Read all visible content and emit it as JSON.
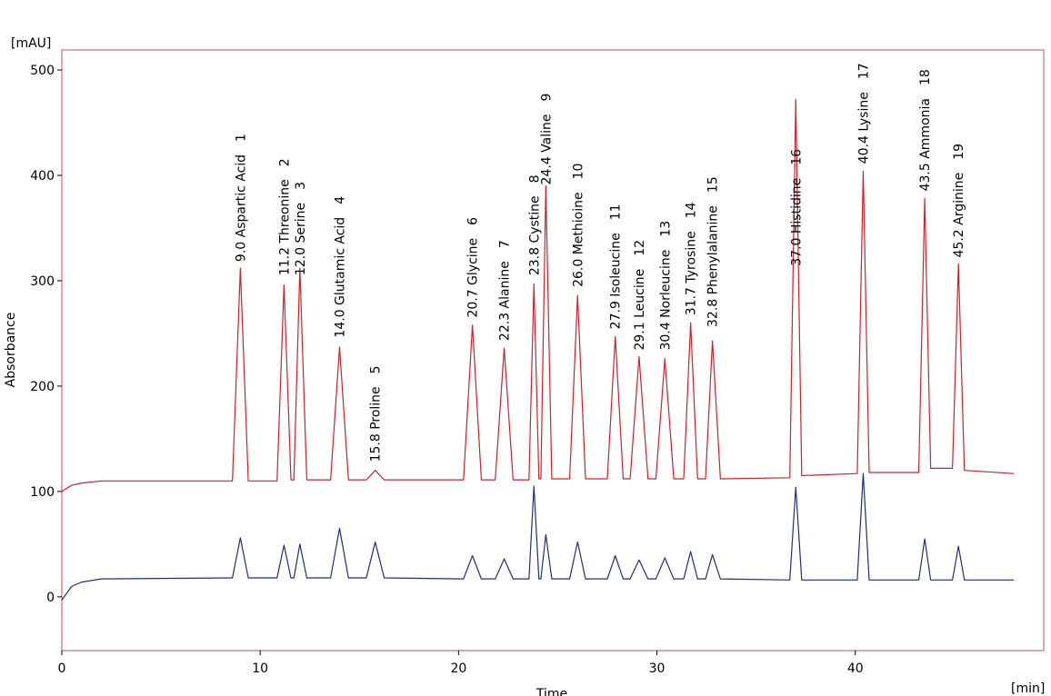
{
  "chart_data": {
    "type": "line",
    "y_unit": "[mAU]",
    "y_label": "Absorbance",
    "x_label": "Time",
    "x_unit": "[min]",
    "frame_color": "#c0504d",
    "xlim": [
      0,
      49.5
    ],
    "ylim": [
      -51,
      519
    ],
    "xticks": [
      0,
      10,
      20,
      30,
      40
    ],
    "yticks": [
      0,
      100,
      200,
      300,
      400,
      500
    ],
    "x": [
      0,
      0.5,
      1,
      2,
      8.6,
      9.0,
      9.4,
      10.85,
      11.2,
      11.55,
      11.7,
      12.0,
      12.35,
      13.55,
      14.0,
      14.45,
      15.35,
      15.8,
      16.25,
      20.25,
      20.7,
      21.15,
      21.85,
      22.3,
      22.75,
      23.55,
      23.8,
      24.05,
      24.15,
      24.4,
      24.7,
      25.6,
      26.0,
      26.4,
      27.5,
      27.9,
      28.3,
      28.65,
      29.1,
      29.55,
      29.95,
      30.4,
      30.85,
      31.35,
      31.7,
      32.05,
      32.45,
      32.8,
      33.2,
      36.7,
      37.0,
      37.3,
      40.1,
      40.4,
      40.7,
      43.2,
      43.5,
      43.8,
      44.9,
      45.2,
      45.5,
      48
    ],
    "series": [
      {
        "color": "#d0202a",
        "values": [
          100,
          106,
          108,
          110,
          110,
          312,
          110,
          110,
          296,
          111,
          111,
          312,
          111,
          111,
          237,
          111,
          111,
          120,
          111,
          111,
          258,
          111,
          111,
          236,
          111,
          111,
          297,
          112,
          112,
          390,
          112,
          112,
          286,
          112,
          112,
          247,
          112,
          112,
          228,
          112,
          112,
          226,
          112,
          112,
          260,
          112,
          112,
          243,
          112,
          113,
          472,
          115,
          117,
          404,
          118,
          118,
          378,
          122,
          122,
          316,
          120,
          117
        ]
      },
      {
        "color": "#1f2f7a",
        "values": [
          -3,
          10,
          14,
          17,
          18,
          56,
          18,
          18,
          49,
          18,
          18,
          50,
          18,
          18,
          65,
          18,
          18,
          52,
          18,
          17,
          39,
          17,
          17,
          36,
          17,
          17,
          105,
          17,
          17,
          59,
          17,
          17,
          52,
          17,
          17,
          39,
          17,
          17,
          35,
          17,
          17,
          37,
          17,
          17,
          43,
          17,
          17,
          40,
          17,
          16,
          104,
          16,
          16,
          117,
          16,
          16,
          55,
          16,
          16,
          48,
          16,
          16
        ]
      }
    ],
    "annotations": [
      {
        "text": "9.0 Aspartic Acid",
        "number": "1",
        "x": 9.0,
        "y": 318
      },
      {
        "text": "11.2 Threonine",
        "number": "2",
        "x": 11.2,
        "y": 305
      },
      {
        "text": "12.0 Serine",
        "number": "3",
        "x": 12.0,
        "y": 305
      },
      {
        "text": "14.0 Glutamic Acid",
        "number": "4",
        "x": 14.0,
        "y": 246
      },
      {
        "text": "15.8 Proline",
        "number": "5",
        "x": 15.8,
        "y": 128
      },
      {
        "text": "20.7 Glycine",
        "number": "6",
        "x": 20.7,
        "y": 265
      },
      {
        "text": "22.3 Alanine",
        "number": "7",
        "x": 22.3,
        "y": 243
      },
      {
        "text": "23.8 Cystine",
        "number": "8",
        "x": 23.8,
        "y": 305
      },
      {
        "text": "24.4 Valine",
        "number": "9",
        "x": 24.4,
        "y": 391
      },
      {
        "text": "26.0 Methioine",
        "number": "10",
        "x": 26.0,
        "y": 294
      },
      {
        "text": "27.9 Isoleucine",
        "number": "11",
        "x": 27.9,
        "y": 254
      },
      {
        "text": "29.1 Leucine",
        "number": "12",
        "x": 29.1,
        "y": 234
      },
      {
        "text": "30.4 Norleucine",
        "number": "13",
        "x": 30.4,
        "y": 234
      },
      {
        "text": "31.7 Tyrosine",
        "number": "14",
        "x": 31.7,
        "y": 267
      },
      {
        "text": "32.8 Phenylalanine",
        "number": "15",
        "x": 32.8,
        "y": 256
      },
      {
        "text": "37.0 Histidine",
        "number": "16",
        "x": 37.0,
        "y": 314
      },
      {
        "text": "40.4 Lysine",
        "number": "17",
        "x": 40.4,
        "y": 411
      },
      {
        "text": "43.5 Ammonia",
        "number": "18",
        "x": 43.5,
        "y": 385
      },
      {
        "text": "45.2 Arginine",
        "number": "19",
        "x": 45.2,
        "y": 322
      }
    ]
  }
}
